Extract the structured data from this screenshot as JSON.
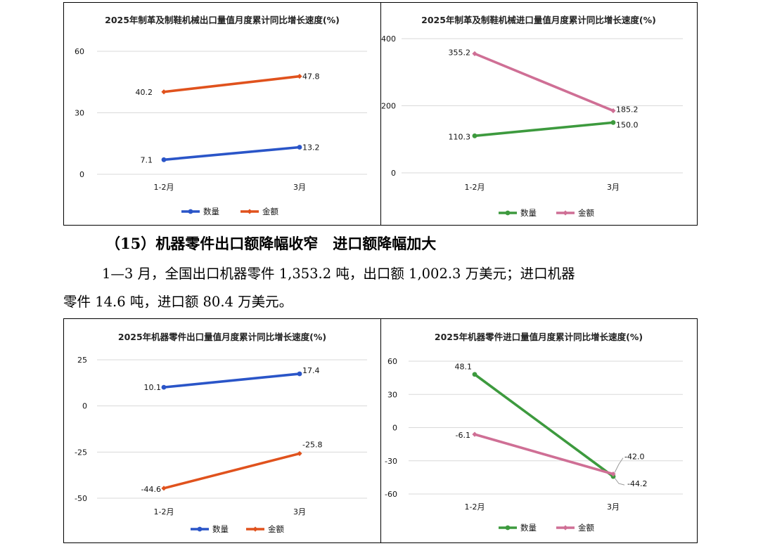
{
  "section": {
    "heading": "（15）机器零件出口额降幅收窄　进口额降幅加大",
    "paragraph_line1": "1—3 月，全国出口机器零件 1,353.2 吨，出口额 1,002.3 万美元；进口机器",
    "paragraph_line2": "零件 14.6 吨，进口额 80.4 万美元。"
  },
  "colors": {
    "blue": "#2a55c8",
    "orange": "#e0521d",
    "green": "#3d9a3e",
    "pink": "#cf6f95",
    "grid": "#d9d9d9",
    "frame": "#000000"
  },
  "chart_data": [
    {
      "id": "c1",
      "type": "line",
      "title": "2025年制革及制鞋机械出口量值月度累计同比增长速度(%)",
      "categories": [
        "1-2月",
        "3月"
      ],
      "yticks": [
        0,
        30,
        60
      ],
      "ylim": [
        0,
        60
      ],
      "grid": true,
      "legend_position": "bottom",
      "series": [
        {
          "name": "数量",
          "color": "#2a55c8",
          "marker": "circle",
          "values": [
            7.1,
            13.2
          ],
          "labels": [
            "7.1",
            "13.2"
          ]
        },
        {
          "name": "金额",
          "color": "#e0521d",
          "marker": "diamond",
          "values": [
            40.2,
            47.8
          ],
          "labels": [
            "40.2",
            "47.8"
          ]
        }
      ]
    },
    {
      "id": "c2",
      "type": "line",
      "title": "2025年制革及制鞋机械进口量值月度累计同比增长速度(%)",
      "categories": [
        "1-2月",
        "3月"
      ],
      "yticks": [
        0,
        200,
        400
      ],
      "ylim": [
        0,
        400
      ],
      "grid": true,
      "legend_position": "bottom",
      "series": [
        {
          "name": "数量",
          "color": "#3d9a3e",
          "marker": "circle",
          "values": [
            110.3,
            150.0
          ],
          "labels": [
            "110.3",
            "150.0"
          ]
        },
        {
          "name": "金额",
          "color": "#cf6f95",
          "marker": "diamond",
          "values": [
            355.2,
            185.2
          ],
          "labels": [
            "355.2",
            "185.2"
          ]
        }
      ]
    },
    {
      "id": "c3",
      "type": "line",
      "title": "2025年机器零件出口量值月度累计同比增长速度(%)",
      "categories": [
        "1-2月",
        "3月"
      ],
      "yticks": [
        -50,
        -25,
        0,
        25
      ],
      "ylim": [
        -50,
        25
      ],
      "grid": true,
      "legend_position": "bottom",
      "series": [
        {
          "name": "数量",
          "color": "#2a55c8",
          "marker": "circle",
          "values": [
            10.1,
            17.4
          ],
          "labels": [
            "10.1",
            "17.4"
          ]
        },
        {
          "name": "金额",
          "color": "#e0521d",
          "marker": "diamond",
          "values": [
            -44.6,
            -25.8
          ],
          "labels": [
            "-44.6",
            "-25.8"
          ]
        }
      ]
    },
    {
      "id": "c4",
      "type": "line",
      "title": "2025年机器零件进口量值月度累计同比增长速度(%)",
      "categories": [
        "1-2月",
        "3月"
      ],
      "yticks": [
        -60,
        -30,
        0,
        30,
        60
      ],
      "ylim": [
        -60,
        60
      ],
      "grid": true,
      "legend_position": "bottom",
      "series": [
        {
          "name": "数量",
          "color": "#3d9a3e",
          "marker": "circle",
          "values": [
            48.1,
            -44.2
          ],
          "labels": [
            "48.1",
            "-44.2"
          ]
        },
        {
          "name": "金额",
          "color": "#cf6f95",
          "marker": "diamond",
          "values": [
            -6.1,
            -42.0
          ],
          "labels": [
            "-6.1",
            "-42.0"
          ]
        }
      ]
    }
  ]
}
